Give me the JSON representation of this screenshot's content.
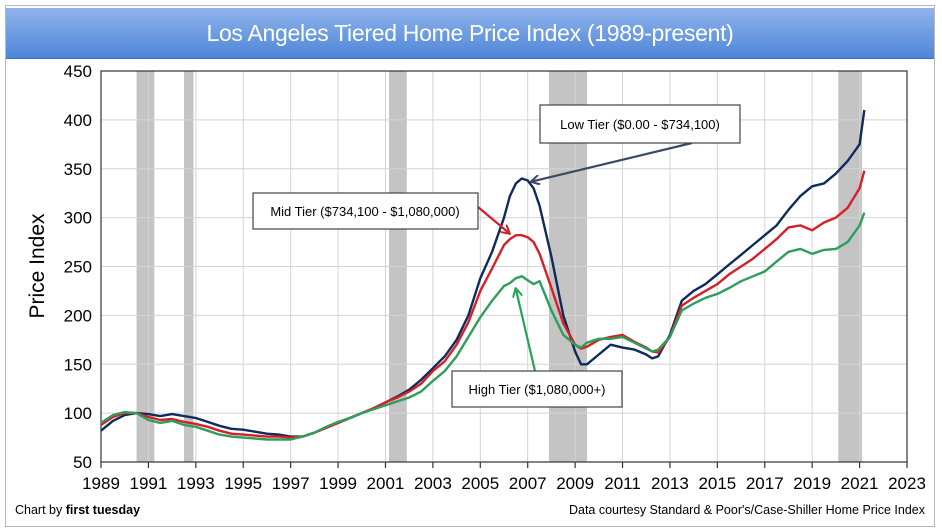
{
  "chart_data": {
    "type": "line",
    "title": "Los Angeles Tiered Home Price Index (1989-present)",
    "xlabel": "",
    "ylabel": "Price Index",
    "xlim": [
      1989,
      2023
    ],
    "ylim": [
      50,
      450
    ],
    "grid": true,
    "x_ticks": [
      "1989",
      "1991",
      "1993",
      "1995",
      "1997",
      "1999",
      "2001",
      "2003",
      "2005",
      "2007",
      "2009",
      "2011",
      "2013",
      "2015",
      "2017",
      "2019",
      "2021",
      "2023"
    ],
    "y_ticks": [
      "50",
      "100",
      "150",
      "200",
      "250",
      "300",
      "350",
      "400",
      "450"
    ],
    "recessions": [
      [
        1990.5,
        1991.25
      ],
      [
        1992.5,
        1992.9
      ],
      [
        2001.15,
        2001.9
      ],
      [
        2007.9,
        2009.5
      ],
      [
        2020.1,
        2021.1
      ]
    ],
    "series": [
      {
        "name": "Low Tier ($0.00 - $734,100)",
        "color": "#0f2b5b",
        "x": [
          1989,
          1989.5,
          1990,
          1990.5,
          1991,
          1991.5,
          1992,
          1992.5,
          1993,
          1993.5,
          1994,
          1994.5,
          1995,
          1995.5,
          1996,
          1996.5,
          1997,
          1997.5,
          1998,
          1998.5,
          1999,
          1999.5,
          2000,
          2000.5,
          2001,
          2001.5,
          2002,
          2002.5,
          2003,
          2003.5,
          2004,
          2004.5,
          2005,
          2005.5,
          2006,
          2006.25,
          2006.5,
          2006.75,
          2007,
          2007.25,
          2007.5,
          2008,
          2008.5,
          2009,
          2009.25,
          2009.5,
          2010,
          2010.5,
          2011,
          2011.5,
          2012,
          2012.25,
          2012.5,
          2013,
          2013.5,
          2014,
          2014.5,
          2015,
          2015.5,
          2016,
          2016.5,
          2017,
          2017.5,
          2018,
          2018.5,
          2019,
          2019.5,
          2020,
          2020.5,
          2021,
          2021.2
        ],
        "values": [
          82,
          92,
          98,
          100,
          99,
          97,
          99,
          97,
          95,
          91,
          87,
          84,
          83,
          81,
          79,
          78,
          76,
          76,
          80,
          85,
          90,
          95,
          100,
          105,
          111,
          117,
          124,
          134,
          146,
          158,
          175,
          200,
          238,
          265,
          300,
          322,
          335,
          340,
          338,
          330,
          312,
          260,
          200,
          163,
          150,
          150,
          160,
          170,
          167,
          165,
          160,
          156,
          158,
          180,
          215,
          225,
          232,
          242,
          252,
          262,
          272,
          282,
          292,
          308,
          322,
          332,
          335,
          345,
          358,
          375,
          410
        ]
      },
      {
        "name": "Mid Tier ($734,100 - $1,080,000)",
        "color": "#d62027",
        "x": [
          1989,
          1989.5,
          1990,
          1990.5,
          1991,
          1991.5,
          1992,
          1992.5,
          1993,
          1993.5,
          1994,
          1994.5,
          1995,
          1995.5,
          1996,
          1996.5,
          1997,
          1997.5,
          1998,
          1998.5,
          1999,
          1999.5,
          2000,
          2000.5,
          2001,
          2001.5,
          2002,
          2002.5,
          2003,
          2003.5,
          2004,
          2004.5,
          2005,
          2005.5,
          2006,
          2006.25,
          2006.5,
          2006.75,
          2007,
          2007.25,
          2007.5,
          2008,
          2008.5,
          2009,
          2009.25,
          2009.5,
          2010,
          2010.5,
          2011,
          2011.5,
          2012,
          2012.25,
          2012.5,
          2013,
          2013.5,
          2014,
          2014.5,
          2015,
          2015.5,
          2016,
          2016.5,
          2017,
          2017.5,
          2018,
          2018.5,
          2019,
          2019.5,
          2020,
          2020.5,
          2021,
          2021.2
        ],
        "values": [
          88,
          96,
          100,
          100,
          96,
          93,
          94,
          91,
          89,
          86,
          82,
          79,
          78,
          77,
          76,
          76,
          75,
          76,
          80,
          85,
          90,
          95,
          100,
          105,
          111,
          116,
          122,
          130,
          143,
          153,
          170,
          193,
          225,
          248,
          272,
          278,
          282,
          282,
          280,
          275,
          263,
          228,
          192,
          170,
          166,
          168,
          175,
          178,
          180,
          173,
          167,
          163,
          162,
          178,
          210,
          218,
          225,
          232,
          242,
          250,
          258,
          268,
          278,
          290,
          292,
          287,
          295,
          300,
          310,
          330,
          348
        ]
      },
      {
        "name": "High Tier ($1,080,000+)",
        "color": "#2e9e5b",
        "x": [
          1989,
          1989.5,
          1990,
          1990.5,
          1991,
          1991.5,
          1992,
          1992.5,
          1993,
          1993.5,
          1994,
          1994.5,
          1995,
          1995.5,
          1996,
          1996.5,
          1997,
          1997.5,
          1998,
          1998.5,
          1999,
          1999.5,
          2000,
          2000.5,
          2001,
          2001.5,
          2002,
          2002.5,
          2003,
          2003.5,
          2004,
          2004.5,
          2005,
          2005.5,
          2006,
          2006.25,
          2006.5,
          2006.75,
          2007,
          2007.25,
          2007.5,
          2008,
          2008.5,
          2009,
          2009.25,
          2009.5,
          2010,
          2010.5,
          2011,
          2011.5,
          2012,
          2012.25,
          2012.5,
          2013,
          2013.5,
          2014,
          2014.5,
          2015,
          2015.5,
          2016,
          2016.5,
          2017,
          2017.5,
          2018,
          2018.5,
          2019,
          2019.5,
          2020,
          2020.5,
          2021,
          2021.2
        ],
        "values": [
          90,
          98,
          101,
          100,
          93,
          90,
          92,
          88,
          86,
          82,
          78,
          76,
          75,
          74,
          73,
          73,
          73,
          76,
          80,
          86,
          91,
          95,
          100,
          104,
          108,
          112,
          116,
          122,
          133,
          143,
          158,
          178,
          198,
          215,
          230,
          233,
          238,
          240,
          236,
          232,
          235,
          205,
          180,
          170,
          167,
          172,
          176,
          176,
          178,
          172,
          166,
          163,
          165,
          178,
          205,
          212,
          218,
          222,
          228,
          235,
          240,
          245,
          255,
          265,
          268,
          263,
          267,
          268,
          275,
          292,
          305
        ]
      }
    ],
    "annotations": [
      {
        "text": "Low Tier ($0.00 - $734,100)",
        "points_to": [
          2007.0,
          340
        ]
      },
      {
        "text": "Mid Tier ($734,100 - $1,080,000)",
        "points_to": [
          2006.3,
          281
        ]
      },
      {
        "text": "High Tier ($1,080,000+)",
        "points_to": [
          2006.5,
          233
        ]
      }
    ]
  },
  "credits": {
    "left_prefix": "Chart by ",
    "left_bold": "first tuesday",
    "right": "Data courtesy Standard & Poor's/Case-Shiller Home Price Index"
  }
}
